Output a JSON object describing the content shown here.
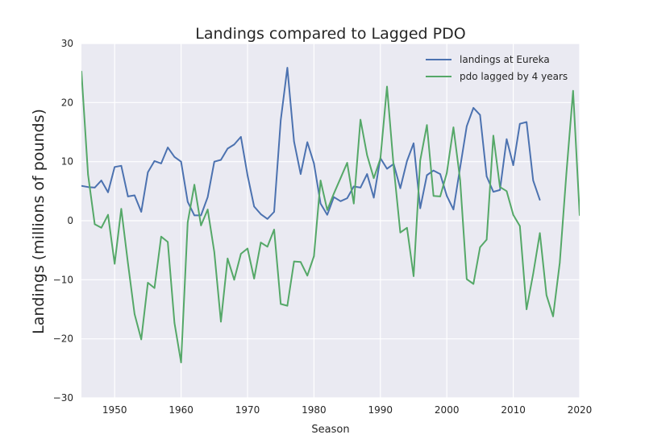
{
  "chart_data": {
    "type": "line",
    "title": "Landings compared to Lagged PDO",
    "xlabel": "Season",
    "ylabel": "Landings (millions of pounds)",
    "xlim": [
      1945,
      2020
    ],
    "ylim": [
      -30,
      30
    ],
    "xticks": [
      "1950",
      "1960",
      "1970",
      "1980",
      "1990",
      "2000",
      "2010",
      "2020"
    ],
    "yticks": [
      "30",
      "20",
      "10",
      "0",
      "−10",
      "−20",
      "−30"
    ],
    "grid": true,
    "legend_position": "top-right",
    "series": [
      {
        "name": "landings at Eureka",
        "color": "#4c72b0",
        "x": [
          1945,
          1946,
          1947,
          1948,
          1949,
          1950,
          1951,
          1952,
          1953,
          1954,
          1955,
          1956,
          1957,
          1958,
          1959,
          1960,
          1961,
          1962,
          1963,
          1964,
          1965,
          1966,
          1967,
          1968,
          1969,
          1970,
          1971,
          1972,
          1973,
          1974,
          1975,
          1976,
          1977,
          1978,
          1979,
          1980,
          1981,
          1982,
          1983,
          1984,
          1985,
          1986,
          1987,
          1988,
          1989,
          1990,
          1991,
          1992,
          1993,
          1994,
          1995,
          1996,
          1997,
          1998,
          1999,
          2000,
          2001,
          2002,
          2003,
          2004,
          2005,
          2006,
          2007,
          2008,
          2009,
          2010,
          2011,
          2012,
          2013,
          2014
        ],
        "values": [
          5.9,
          5.7,
          5.6,
          6.8,
          4.8,
          9.1,
          9.3,
          4.1,
          4.3,
          1.5,
          8.2,
          10.1,
          9.7,
          12.4,
          10.8,
          10.0,
          3.2,
          0.9,
          0.9,
          4.0,
          10.0,
          10.3,
          12.2,
          12.9,
          14.2,
          7.7,
          2.4,
          1.1,
          0.3,
          1.5,
          17.0,
          25.9,
          13.4,
          7.9,
          13.3,
          9.7,
          2.9,
          1.0,
          4.0,
          3.3,
          3.8,
          5.8,
          5.6,
          7.9,
          3.9,
          10.6,
          8.8,
          9.6,
          5.5,
          10.1,
          13.1,
          2.1,
          7.7,
          8.5,
          7.9,
          4.2,
          1.9,
          9.0,
          16.0,
          19.1,
          17.9,
          7.5,
          4.9,
          5.2,
          13.8,
          9.4,
          16.4,
          16.7,
          6.8,
          3.5
        ]
      },
      {
        "name": "pdo lagged by 4 years",
        "color": "#55a868",
        "x": [
          1945,
          1946,
          1947,
          1948,
          1949,
          1950,
          1951,
          1952,
          1953,
          1954,
          1955,
          1956,
          1957,
          1958,
          1959,
          1960,
          1961,
          1962,
          1963,
          1964,
          1965,
          1966,
          1967,
          1968,
          1969,
          1970,
          1971,
          1972,
          1973,
          1974,
          1975,
          1976,
          1977,
          1978,
          1979,
          1980,
          1981,
          1982,
          1983,
          1984,
          1985,
          1986,
          1987,
          1988,
          1989,
          1990,
          1991,
          1992,
          1993,
          1994,
          1995,
          1996,
          1997,
          1998,
          1999,
          2000,
          2001,
          2002,
          2003,
          2004,
          2005,
          2006,
          2007,
          2008,
          2009,
          2010,
          2011,
          2012,
          2013,
          2014,
          2015,
          2016,
          2017,
          2018,
          2019,
          2020
        ],
        "values": [
          25.3,
          7.8,
          -0.6,
          -1.2,
          1.0,
          -7.3,
          2.0,
          -7.2,
          -15.8,
          -20.1,
          -10.5,
          -11.4,
          -2.7,
          -3.6,
          -17.3,
          -24.0,
          -0.3,
          6.1,
          -0.8,
          1.9,
          -5.3,
          -17.1,
          -6.4,
          -10.0,
          -5.6,
          -4.7,
          -9.8,
          -3.7,
          -4.4,
          -1.5,
          -14.1,
          -14.4,
          -6.9,
          -7.0,
          -9.3,
          -6.0,
          6.8,
          1.8,
          4.6,
          7.2,
          9.8,
          2.9,
          17.1,
          11.1,
          7.2,
          10.5,
          22.7,
          9.1,
          -2.0,
          -1.2,
          -9.4,
          10.2,
          16.2,
          4.2,
          4.1,
          8.1,
          15.8,
          6.9,
          -9.9,
          -10.7,
          -4.5,
          -3.2,
          14.4,
          5.7,
          5.0,
          1.0,
          -0.9,
          -15.0,
          -9.0,
          -2.1,
          -12.6,
          -16.2,
          -7.1,
          8.0,
          22.0,
          0.9
        ]
      }
    ]
  }
}
